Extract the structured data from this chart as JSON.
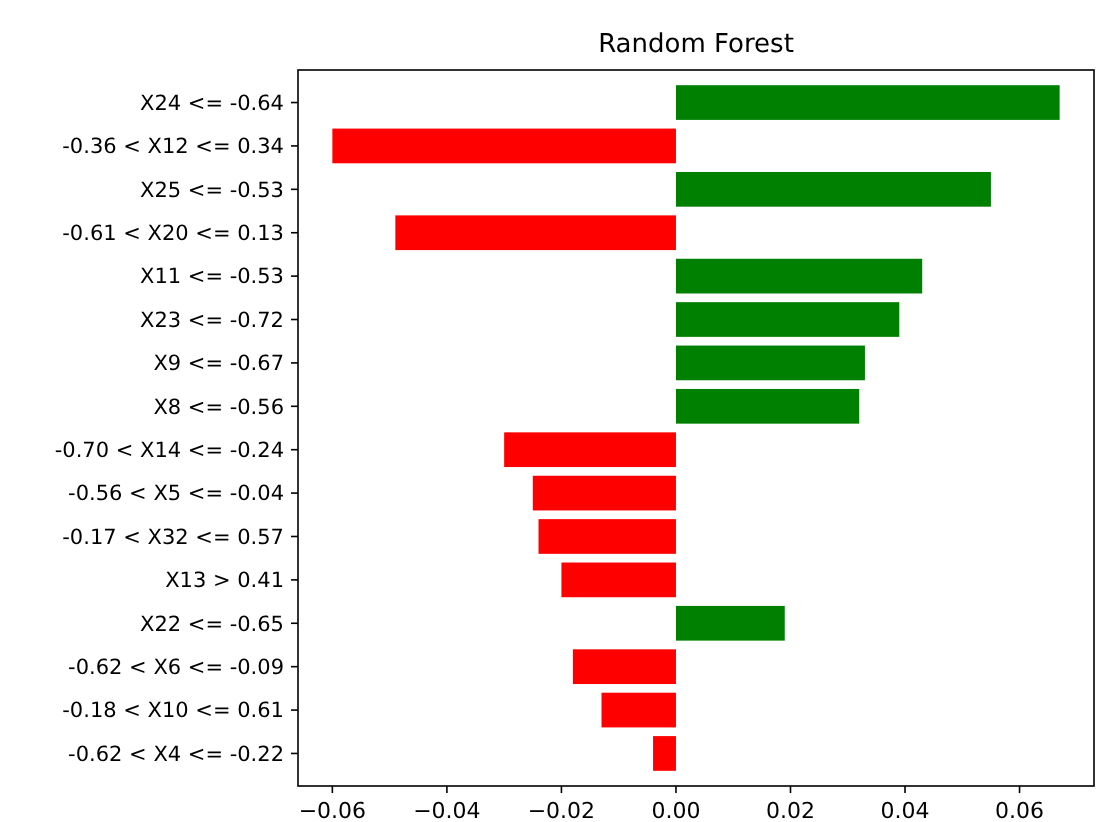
{
  "chart_data": {
    "type": "bar",
    "orientation": "horizontal",
    "title": "Random Forest",
    "categories": [
      "X24 <= -0.64",
      "-0.36 < X12 <= 0.34",
      "X25 <= -0.53",
      "-0.61 < X20 <= 0.13",
      "X11 <= -0.53",
      "X23 <= -0.72",
      "X9 <= -0.67",
      "X8 <= -0.56",
      "-0.70 < X14 <= -0.24",
      "-0.56 < X5 <= -0.04",
      "-0.17 < X32 <= 0.57",
      "X13 > 0.41",
      "X22 <= -0.65",
      "-0.62 < X6 <= -0.09",
      "-0.18 < X10 <= 0.61",
      "-0.62 < X4 <= -0.22"
    ],
    "values": [
      0.067,
      -0.06,
      0.055,
      -0.049,
      0.043,
      0.039,
      0.033,
      0.032,
      -0.03,
      -0.025,
      -0.024,
      -0.02,
      0.019,
      -0.018,
      -0.013,
      -0.004
    ],
    "colors": [
      "#008000",
      "#ff0000",
      "#008000",
      "#ff0000",
      "#008000",
      "#008000",
      "#008000",
      "#008000",
      "#ff0000",
      "#ff0000",
      "#ff0000",
      "#ff0000",
      "#008000",
      "#ff0000",
      "#ff0000",
      "#ff0000"
    ],
    "xlim": [
      -0.066,
      0.073
    ],
    "xticks": [
      {
        "value": -0.06,
        "label": "−0.06"
      },
      {
        "value": -0.04,
        "label": "−0.04"
      },
      {
        "value": -0.02,
        "label": "−0.02"
      },
      {
        "value": 0,
        "label": "0.00"
      },
      {
        "value": 0.02,
        "label": "0.02"
      },
      {
        "value": 0.04,
        "label": "0.04"
      },
      {
        "value": 0.06,
        "label": "0.06"
      }
    ],
    "grid": false
  }
}
